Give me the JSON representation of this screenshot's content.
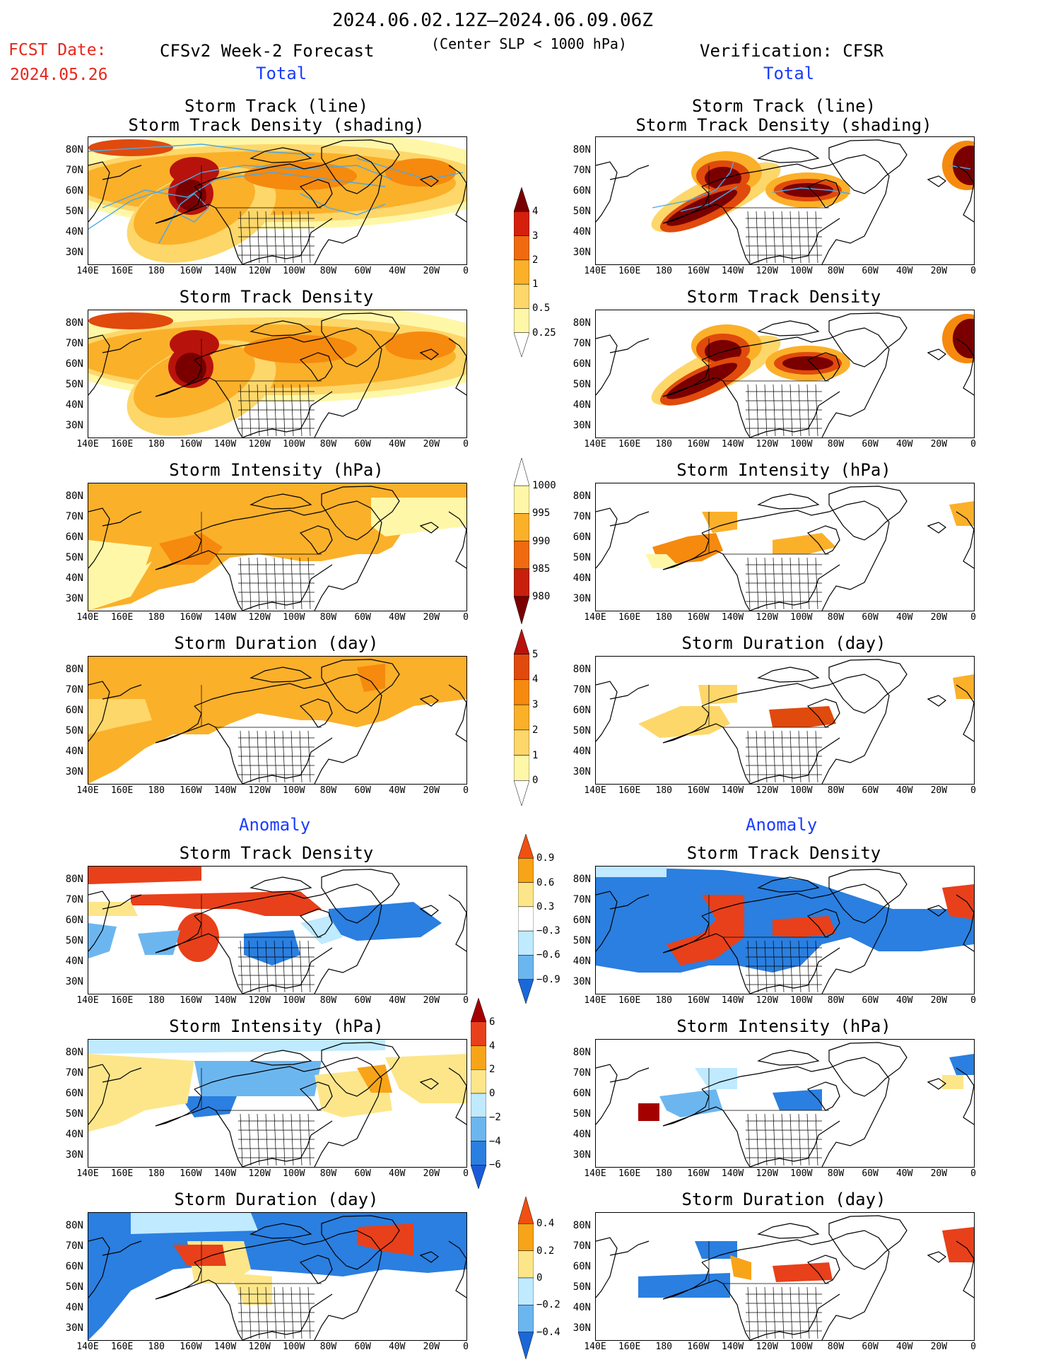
{
  "header": {
    "date_range": "2024.06.02.12Z–2024.06.09.06Z",
    "slp_note": "(Center SLP < 1000 hPa)",
    "fcst_label": "FCST Date:",
    "fcst_date": "2024.05.26",
    "left_title": "CFSv2 Week-2 Forecast",
    "right_title": "Verification: CFSR",
    "total_left": "Total",
    "total_right": "Total",
    "anomaly_left": "Anomaly",
    "anomaly_right": "Anomaly"
  },
  "panel_titles": {
    "track_l1": "Storm Track (line)",
    "track_l2": "Storm Track Density (shading)",
    "density": "Storm Track Density",
    "intensity": "Storm Intensity (hPa)",
    "duration": "Storm Duration (day)"
  },
  "axes": {
    "lat_labels": [
      "80N",
      "70N",
      "60N",
      "50N",
      "40N",
      "30N"
    ],
    "lon_labels": [
      "140E",
      "160E",
      "180",
      "160W",
      "140W",
      "120W",
      "100W",
      "80W",
      "60W",
      "40W",
      "20W",
      "0"
    ]
  },
  "colorbars": {
    "density": [
      "4",
      "3",
      "2",
      "1",
      "0.5",
      "0.25"
    ],
    "intensity": [
      "1000",
      "995",
      "990",
      "985",
      "980"
    ],
    "duration": [
      "5",
      "4",
      "3",
      "2",
      "1",
      "0"
    ],
    "density_anom": [
      "0.9",
      "0.6",
      "0.3",
      "−0.3",
      "−0.6",
      "−0.9"
    ],
    "intensity_anom": [
      "6",
      "4",
      "2",
      "0",
      "−2",
      "−4",
      "−6"
    ],
    "duration_anom": [
      "0.4",
      "0.2",
      "0",
      "−0.2",
      "−0.4"
    ]
  },
  "colors": {
    "dens": [
      "#fff7a8",
      "#fdd76a",
      "#fbb02a",
      "#f58a0e",
      "#e04a0c",
      "#b8120c",
      "#7a0000"
    ],
    "anom_warm": [
      "#fde68a",
      "#f8a418",
      "#e8401a",
      "#a40000"
    ],
    "anom_cool": [
      "#bfeaff",
      "#6cb6f0",
      "#2a7fe0",
      "#1050c0"
    ]
  }
}
